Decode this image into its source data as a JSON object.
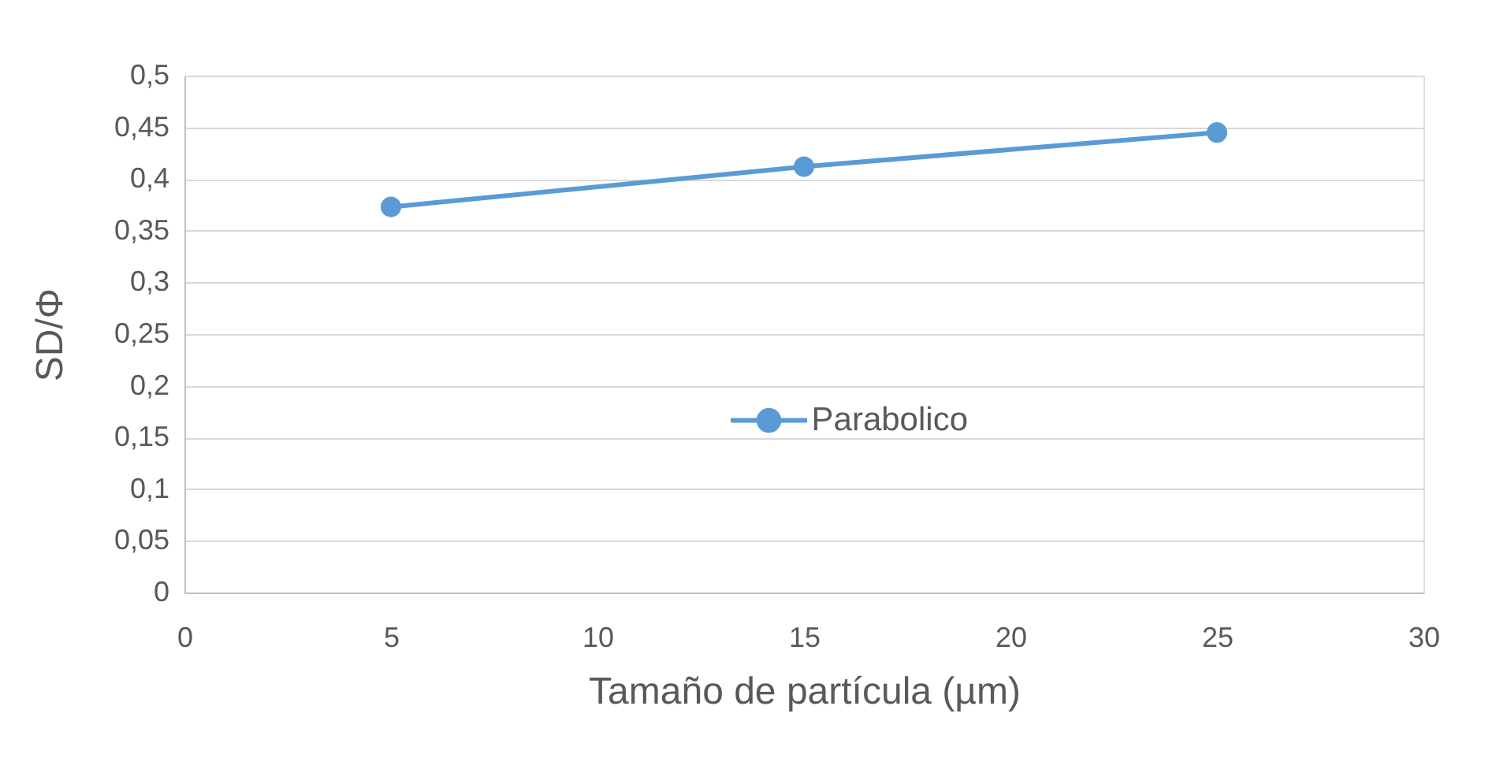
{
  "chart_data": {
    "type": "line",
    "xlabel": "Tamaño de partícula (µm)",
    "ylabel": "SD/Φ",
    "x": [
      5,
      15,
      25
    ],
    "series": [
      {
        "name": "Parabolico",
        "color": "#5b9bd5",
        "values": [
          0.373,
          0.412,
          0.445
        ]
      }
    ],
    "xlim": [
      0,
      30
    ],
    "xticks": [
      0,
      5,
      10,
      15,
      20,
      25,
      30
    ],
    "ylim": [
      0,
      0.5
    ],
    "yticks": [
      0,
      {
        "value": 0.05,
        "label": "0,05"
      },
      {
        "value": 0.1,
        "label": "0,1"
      },
      {
        "value": 0.15,
        "label": "0,15"
      },
      {
        "value": 0.2,
        "label": "0,2"
      },
      {
        "value": 0.25,
        "label": "0,25"
      },
      {
        "value": 0.3,
        "label": "0,3"
      },
      {
        "value": 0.35,
        "label": "0,35"
      },
      {
        "value": 0.4,
        "label": "0,4"
      },
      {
        "value": 0.45,
        "label": "0,45"
      },
      {
        "value": 0.5,
        "label": "0,5"
      }
    ],
    "grid": "y",
    "legend": "center",
    "marker": "circle",
    "line_style": "solid"
  }
}
